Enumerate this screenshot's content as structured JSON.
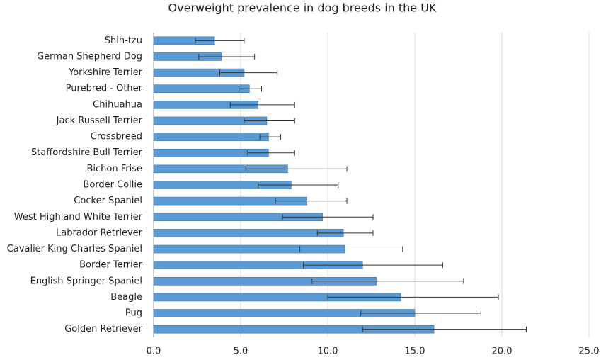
{
  "chart_data": {
    "type": "bar",
    "orientation": "horizontal",
    "title": "Overweight prevalence in dog breeds in the UK",
    "categories": [
      "Shih-tzu",
      "German Shepherd Dog",
      "Yorkshire Terrier",
      "Purebred - Other",
      "Chihuahua",
      "Jack Russell Terrier",
      "Crossbreed",
      "Staffordshire Bull Terrier",
      "Bichon Frise",
      "Border Collie",
      "Cocker Spaniel",
      "West Highland White Terrier",
      "Labrador Retriever",
      "Cavalier King Charles Spaniel",
      "Border Terrier",
      "English Springer Spaniel",
      "Beagle",
      "Pug",
      "Golden Retriever"
    ],
    "values": [
      3.5,
      3.9,
      5.2,
      5.5,
      6.0,
      6.5,
      6.6,
      6.6,
      7.7,
      7.9,
      8.8,
      9.7,
      10.9,
      11.0,
      12.0,
      12.8,
      14.2,
      15.0,
      16.1
    ],
    "lower": [
      2.4,
      2.6,
      3.8,
      4.9,
      4.4,
      5.2,
      6.1,
      5.4,
      5.3,
      6.0,
      7.0,
      7.4,
      9.4,
      8.4,
      8.6,
      9.1,
      10.0,
      11.9,
      12.0
    ],
    "upper": [
      5.2,
      5.8,
      7.1,
      6.2,
      8.1,
      8.1,
      7.3,
      8.1,
      11.1,
      10.6,
      11.1,
      12.6,
      12.6,
      14.3,
      16.6,
      17.8,
      19.8,
      18.8,
      21.4
    ],
    "color": "#5b9bd5",
    "xlim": [
      0,
      25
    ],
    "xticks": [
      {
        "value": 0,
        "label": "0.0"
      },
      {
        "value": 5,
        "label": "5.0"
      },
      {
        "value": 10,
        "label": "10.0"
      },
      {
        "value": 15,
        "label": "15.0"
      },
      {
        "value": 20,
        "label": "20.0"
      },
      {
        "value": 25,
        "label": "25.0"
      }
    ],
    "grid": true
  }
}
